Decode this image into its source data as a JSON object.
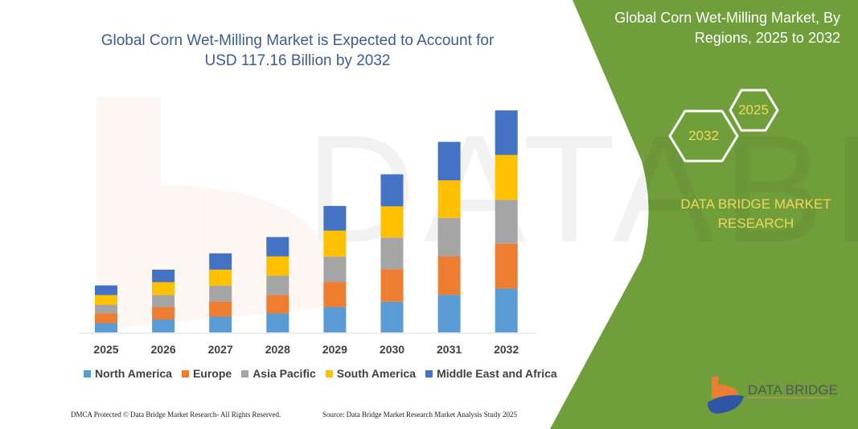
{
  "header": {
    "title_line1": "Global Corn Wet-Milling Market is Expected to Account for",
    "title_line2": "USD 117.16 Billion by 2032"
  },
  "side_panel": {
    "title_line1": "Global Corn Wet-Milling Market, By",
    "title_line2": "Regions, 2025 to 2032",
    "hex_start": "2025",
    "hex_end": "2032",
    "brand_line1": "DATA BRIDGE MARKET",
    "brand_line2": "RESEARCH",
    "logo_text": "DATA BRIDGE",
    "logo_subtext": "MARKET RESEARCH",
    "panel_color": "#6f9e3a",
    "accent_text_color": "#f2d75c"
  },
  "footer": {
    "left": "DMCA Protected © Data Bridge Market Research- All Rights Reserved.",
    "right": "Source: Data Bridge Market Research Market Analysis Study 2025"
  },
  "chart_data": {
    "type": "bar",
    "stacked": true,
    "title": "Global Corn Wet-Milling Market is Expected to Account for USD 117.16 Billion by 2032",
    "categories": [
      "2025",
      "2026",
      "2027",
      "2028",
      "2029",
      "2030",
      "2031",
      "2032"
    ],
    "series": [
      {
        "name": "North America",
        "color": "#5b9bd5",
        "values": [
          4.9,
          6.8,
          8.3,
          10.0,
          13.4,
          16.2,
          19.8,
          23.1
        ]
      },
      {
        "name": "Europe",
        "color": "#ed7d31",
        "values": [
          5.2,
          6.6,
          8.0,
          9.7,
          13.3,
          17.2,
          20.3,
          23.7
        ]
      },
      {
        "name": "Asia Pacific",
        "color": "#a5a5a5",
        "values": [
          4.5,
          6.3,
          8.3,
          10.2,
          13.3,
          16.6,
          20.3,
          23.1
        ]
      },
      {
        "name": "South America",
        "color": "#ffc000",
        "values": [
          5.1,
          6.8,
          8.5,
          10.2,
          13.7,
          16.5,
          19.8,
          23.7
        ]
      },
      {
        "name": "Middle East and Africa",
        "color": "#4472c4",
        "values": [
          5.1,
          6.6,
          8.6,
          10.2,
          13.0,
          16.9,
          20.3,
          23.5
        ]
      }
    ],
    "ylim": [
      0,
      117.16
    ],
    "y_axis_visible": false,
    "grid": false,
    "legend_position": "bottom"
  }
}
